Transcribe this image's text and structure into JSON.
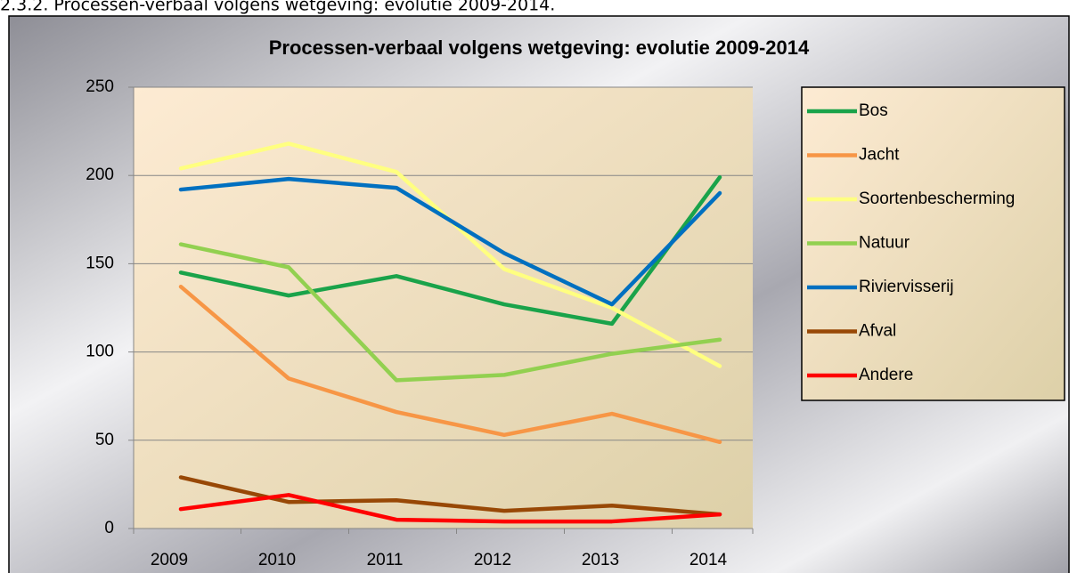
{
  "heading": "2.3.2. Processen-verbaal volgens wetgeving: evolutie 2009-2014.",
  "chart_data": {
    "type": "line",
    "title": "Processen-verbaal volgens wetgeving: evolutie 2009-2014",
    "categories": [
      "2009",
      "2010",
      "2011",
      "2012",
      "2013",
      "2014"
    ],
    "ylim": [
      0,
      250
    ],
    "yticks": [
      0,
      50,
      100,
      150,
      200,
      250
    ],
    "grid": true,
    "legend": "right",
    "series": [
      {
        "name": "Bos",
        "color": "#1aa34a",
        "values": [
          145,
          132,
          143,
          127,
          116,
          199
        ]
      },
      {
        "name": "Jacht",
        "color": "#f79646",
        "values": [
          137,
          85,
          66,
          53,
          65,
          49
        ]
      },
      {
        "name": "Soortenbescherming",
        "color": "#ffff80",
        "values": [
          204,
          218,
          202,
          147,
          125,
          92
        ]
      },
      {
        "name": "Natuur",
        "color": "#92d050",
        "values": [
          161,
          148,
          84,
          87,
          99,
          107
        ]
      },
      {
        "name": "Riviervisserij",
        "color": "#0070c0",
        "values": [
          192,
          198,
          193,
          156,
          127,
          190
        ]
      },
      {
        "name": "Afval",
        "color": "#984806",
        "values": [
          29,
          15,
          16,
          10,
          13,
          8
        ]
      },
      {
        "name": "Andere",
        "color": "#ff0000",
        "values": [
          11,
          19,
          5,
          4,
          4,
          8
        ]
      }
    ]
  }
}
